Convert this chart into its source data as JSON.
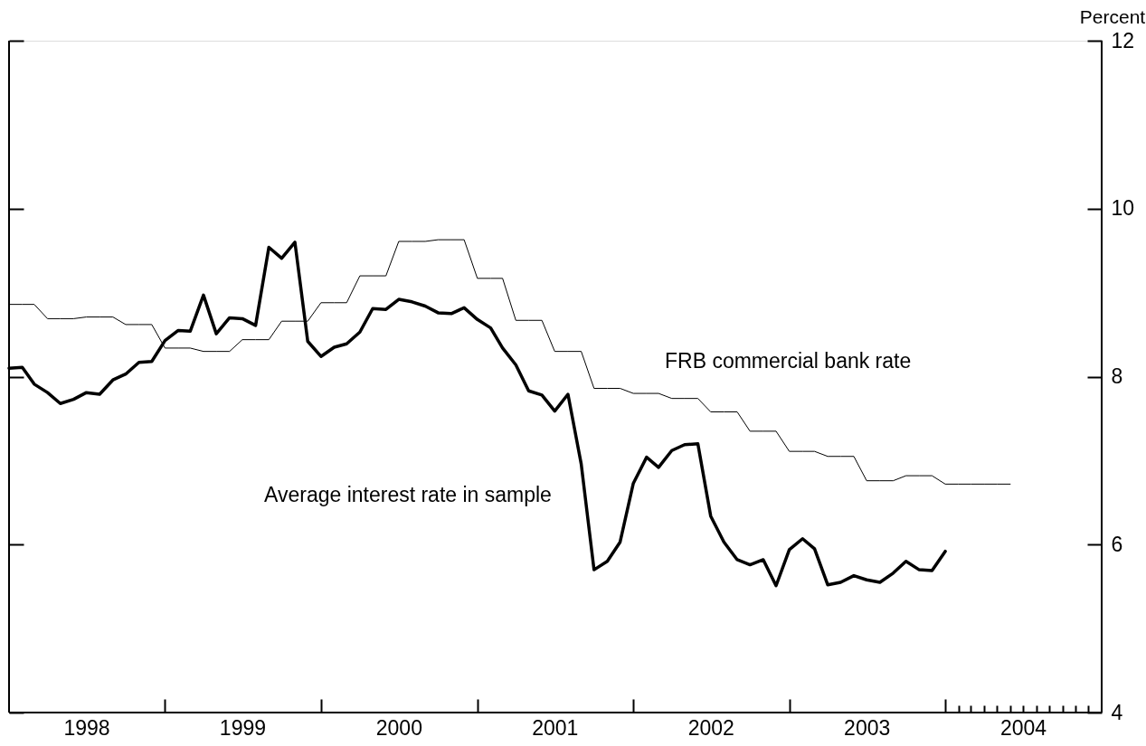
{
  "chart_data": {
    "type": "line",
    "ylabel": "Percent",
    "xlim": [
      "1998-01",
      "2005-01"
    ],
    "xticks": [
      {
        "value": "1998-07",
        "label": "1998"
      },
      {
        "value": "1999-07",
        "label": "1999"
      },
      {
        "value": "2000-07",
        "label": "2000"
      },
      {
        "value": "2001-07",
        "label": "2001"
      },
      {
        "value": "2002-07",
        "label": "2002"
      },
      {
        "value": "2003-07",
        "label": "2003"
      },
      {
        "value": "2004-07",
        "label": "2004"
      },
      {
        "value": "1999-01",
        "label": null
      },
      {
        "value": "2000-01",
        "label": null
      },
      {
        "value": "2001-01",
        "label": null
      },
      {
        "value": "2002-01",
        "label": null
      },
      {
        "value": "2003-01",
        "label": null
      },
      {
        "value": "2004-01",
        "label": null
      },
      {
        "value": "2004-02",
        "label": null
      },
      {
        "value": "2004-03",
        "label": null
      },
      {
        "value": "2004-04",
        "label": null
      },
      {
        "value": "2004-05",
        "label": null
      },
      {
        "value": "2004-06",
        "label": null
      },
      {
        "value": "2004-07",
        "label": null
      },
      {
        "value": "2004-08",
        "label": null
      },
      {
        "value": "2004-09",
        "label": null
      },
      {
        "value": "2004-10",
        "label": null
      },
      {
        "value": "2004-11",
        "label": null
      },
      {
        "value": "2004-12",
        "label": null
      }
    ],
    "ylim": [
      4,
      12
    ],
    "yticks": [
      4,
      6,
      8,
      10,
      12
    ],
    "grid": false,
    "marker": "none",
    "line_style": "solid",
    "series": [
      {
        "name": "Average interest rate in sample",
        "color": "#000000",
        "x": [
          "1998-01",
          "1998-02",
          "1998-03",
          "1998-04",
          "1998-05",
          "1998-06",
          "1998-07",
          "1998-08",
          "1998-09",
          "1998-10",
          "1998-11",
          "1998-12",
          "1999-01",
          "1999-02",
          "1999-03",
          "1999-04",
          "1999-05",
          "1999-06",
          "1999-07",
          "1999-08",
          "1999-09",
          "1999-10",
          "1999-11",
          "1999-12",
          "2000-01",
          "2000-02",
          "2000-03",
          "2000-04",
          "2000-05",
          "2000-06",
          "2000-07",
          "2000-08",
          "2000-09",
          "2000-10",
          "2000-11",
          "2000-12",
          "2001-01",
          "2001-02",
          "2001-03",
          "2001-04",
          "2001-05",
          "2001-06",
          "2001-07",
          "2001-08",
          "2001-09",
          "2001-10",
          "2001-11",
          "2001-12",
          "2002-01",
          "2002-02",
          "2002-03",
          "2002-04",
          "2002-05",
          "2002-06",
          "2002-07",
          "2002-08",
          "2002-09",
          "2002-10",
          "2002-11",
          "2002-12",
          "2003-01",
          "2003-02",
          "2003-03",
          "2003-04",
          "2003-05",
          "2003-06",
          "2003-07",
          "2003-08",
          "2003-09",
          "2003-10",
          "2003-11",
          "2003-12",
          "2004-01"
        ],
        "values": [
          8.1,
          8.11,
          7.91,
          7.81,
          7.68,
          7.73,
          7.81,
          7.79,
          7.96,
          8.03,
          8.17,
          8.18,
          8.43,
          8.55,
          8.54,
          8.97,
          8.51,
          8.7,
          8.69,
          8.61,
          9.54,
          9.41,
          9.6,
          8.42,
          8.24,
          8.35,
          8.39,
          8.53,
          8.81,
          8.8,
          8.92,
          8.89,
          8.84,
          8.76,
          8.75,
          8.82,
          8.68,
          8.58,
          8.34,
          8.14,
          7.83,
          7.78,
          7.59,
          7.79,
          6.96,
          5.7,
          5.8,
          6.03,
          6.73,
          7.04,
          6.92,
          7.12,
          7.19,
          7.2,
          6.34,
          6.03,
          5.82,
          5.76,
          5.82,
          5.51,
          5.94,
          6.07,
          5.95,
          5.52,
          5.55,
          5.63,
          5.58,
          5.55,
          5.66,
          5.8,
          5.7,
          5.69,
          5.92
        ]
      },
      {
        "name": "FRB commercial bank rate",
        "color": "#000000",
        "x": [
          "1998-01",
          "1998-02",
          "1998-03",
          "1998-04",
          "1998-05",
          "1998-06",
          "1998-07",
          "1998-08",
          "1998-09",
          "1998-10",
          "1998-11",
          "1998-12",
          "1999-01",
          "1999-02",
          "1999-03",
          "1999-04",
          "1999-05",
          "1999-06",
          "1999-07",
          "1999-08",
          "1999-09",
          "1999-10",
          "1999-11",
          "1999-12",
          "2000-01",
          "2000-02",
          "2000-03",
          "2000-04",
          "2000-05",
          "2000-06",
          "2000-07",
          "2000-08",
          "2000-09",
          "2000-10",
          "2000-11",
          "2000-12",
          "2001-01",
          "2001-02",
          "2001-03",
          "2001-04",
          "2001-05",
          "2001-06",
          "2001-07",
          "2001-08",
          "2001-09",
          "2001-10",
          "2001-11",
          "2001-12",
          "2002-01",
          "2002-02",
          "2002-03",
          "2002-04",
          "2002-05",
          "2002-06",
          "2002-07",
          "2002-08",
          "2002-09",
          "2002-10",
          "2002-11",
          "2002-12",
          "2003-01",
          "2003-02",
          "2003-03",
          "2003-04",
          "2003-05",
          "2003-06",
          "2003-07",
          "2003-08",
          "2003-09",
          "2003-10",
          "2003-11",
          "2003-12",
          "2004-01",
          "2004-02",
          "2004-03",
          "2004-04",
          "2004-05",
          "2004-06"
        ],
        "values": [
          8.86,
          8.86,
          8.86,
          8.69,
          8.69,
          8.69,
          8.71,
          8.71,
          8.71,
          8.62,
          8.62,
          8.62,
          8.34,
          8.34,
          8.34,
          8.3,
          8.3,
          8.3,
          8.44,
          8.44,
          8.44,
          8.66,
          8.66,
          8.66,
          8.88,
          8.88,
          8.88,
          9.2,
          9.2,
          9.2,
          9.61,
          9.61,
          9.61,
          9.63,
          9.63,
          9.63,
          9.17,
          9.17,
          9.17,
          8.67,
          8.67,
          8.67,
          8.3,
          8.3,
          8.3,
          7.86,
          7.86,
          7.86,
          7.8,
          7.8,
          7.8,
          7.74,
          7.74,
          7.74,
          7.58,
          7.58,
          7.58,
          7.35,
          7.35,
          7.35,
          7.11,
          7.11,
          7.11,
          7.05,
          7.05,
          7.05,
          6.76,
          6.76,
          6.76,
          6.82,
          6.82,
          6.82,
          6.72,
          6.72,
          6.72,
          6.72,
          6.72,
          6.72
        ]
      }
    ]
  }
}
